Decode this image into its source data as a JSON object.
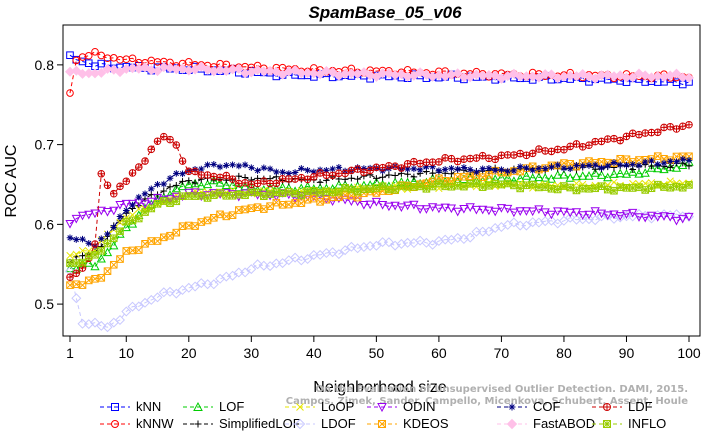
{
  "chart_data": {
    "type": "line",
    "title": "SpamBase_05_v06",
    "xlabel": "Neighborhood size",
    "ylabel": "ROC AUC",
    "xlim": [
      1,
      100
    ],
    "ylim": [
      0.46,
      0.85
    ],
    "x_ticks": [
      1,
      10,
      20,
      30,
      40,
      50,
      60,
      70,
      80,
      90,
      100
    ],
    "y_ticks": [
      0.5,
      0.6,
      0.7,
      0.8
    ],
    "grid": false,
    "legend_position": "bottom",
    "watermark": [
      "On the Evaluation of Unsupervised Outlier Detection. DAMI, 2015.",
      "Campos, Zimek, Sander, Campello, Micenkova, Schubert, Assent, Houle"
    ],
    "series": [
      {
        "name": "kNN",
        "color": "#0000ff",
        "marker": "square",
        "dashed": true,
        "points": [
          [
            1,
            0.809
          ],
          [
            3,
            0.805
          ],
          [
            5,
            0.8
          ],
          [
            10,
            0.797
          ],
          [
            15,
            0.796
          ],
          [
            20,
            0.795
          ],
          [
            25,
            0.793
          ],
          [
            30,
            0.791
          ],
          [
            35,
            0.788
          ],
          [
            40,
            0.787
          ],
          [
            50,
            0.786
          ],
          [
            60,
            0.785
          ],
          [
            70,
            0.784
          ],
          [
            80,
            0.783
          ],
          [
            90,
            0.781
          ],
          [
            100,
            0.778
          ]
        ]
      },
      {
        "name": "kNNW",
        "color": "#ff0000",
        "marker": "circle",
        "dashed": true,
        "points": [
          [
            1,
            0.765
          ],
          [
            2,
            0.805
          ],
          [
            3,
            0.812
          ],
          [
            5,
            0.813
          ],
          [
            10,
            0.806
          ],
          [
            20,
            0.801
          ],
          [
            30,
            0.797
          ],
          [
            40,
            0.793
          ],
          [
            50,
            0.792
          ],
          [
            60,
            0.79
          ],
          [
            70,
            0.788
          ],
          [
            80,
            0.787
          ],
          [
            90,
            0.786
          ],
          [
            100,
            0.785
          ]
        ]
      },
      {
        "name": "LOF",
        "color": "#00cc00",
        "marker": "triangle-up",
        "dashed": true,
        "points": [
          [
            1,
            0.545
          ],
          [
            3,
            0.55
          ],
          [
            5,
            0.548
          ],
          [
            8,
            0.575
          ],
          [
            10,
            0.595
          ],
          [
            13,
            0.62
          ],
          [
            17,
            0.64
          ],
          [
            20,
            0.65
          ],
          [
            25,
            0.652
          ],
          [
            30,
            0.645
          ],
          [
            40,
            0.645
          ],
          [
            50,
            0.65
          ],
          [
            60,
            0.655
          ],
          [
            70,
            0.657
          ],
          [
            80,
            0.66
          ],
          [
            90,
            0.663
          ],
          [
            100,
            0.675
          ]
        ]
      },
      {
        "name": "SimplifiedLOF",
        "color": "#000000",
        "marker": "plus",
        "dashed": true,
        "points": [
          [
            1,
            0.555
          ],
          [
            3,
            0.56
          ],
          [
            5,
            0.565
          ],
          [
            10,
            0.615
          ],
          [
            15,
            0.64
          ],
          [
            20,
            0.655
          ],
          [
            30,
            0.658
          ],
          [
            40,
            0.655
          ],
          [
            50,
            0.66
          ],
          [
            60,
            0.665
          ],
          [
            70,
            0.668
          ],
          [
            80,
            0.67
          ],
          [
            90,
            0.672
          ],
          [
            100,
            0.675
          ]
        ]
      },
      {
        "name": "LoOP",
        "color": "#e6e600",
        "marker": "x",
        "dashed": true,
        "points": [
          [
            1,
            0.56
          ],
          [
            5,
            0.57
          ],
          [
            10,
            0.61
          ],
          [
            15,
            0.625
          ],
          [
            20,
            0.64
          ],
          [
            30,
            0.64
          ],
          [
            40,
            0.64
          ],
          [
            50,
            0.645
          ],
          [
            60,
            0.648
          ],
          [
            70,
            0.65
          ],
          [
            80,
            0.648
          ],
          [
            90,
            0.65
          ],
          [
            100,
            0.652
          ]
        ]
      },
      {
        "name": "LDOF",
        "color": "#c8c8ff",
        "marker": "diamond",
        "dashed": true,
        "points": [
          [
            1,
            0.54
          ],
          [
            2,
            0.505
          ],
          [
            3,
            0.478
          ],
          [
            5,
            0.475
          ],
          [
            7,
            0.47
          ],
          [
            10,
            0.49
          ],
          [
            15,
            0.51
          ],
          [
            20,
            0.52
          ],
          [
            25,
            0.53
          ],
          [
            30,
            0.545
          ],
          [
            40,
            0.56
          ],
          [
            50,
            0.575
          ],
          [
            60,
            0.578
          ],
          [
            65,
            0.585
          ],
          [
            70,
            0.598
          ],
          [
            80,
            0.605
          ],
          [
            90,
            0.61
          ],
          [
            100,
            0.612
          ]
        ]
      },
      {
        "name": "ODIN",
        "color": "#9900ee",
        "marker": "triangle-down",
        "dashed": true,
        "points": [
          [
            1,
            0.6
          ],
          [
            2,
            0.61
          ],
          [
            4,
            0.612
          ],
          [
            6,
            0.615
          ],
          [
            8,
            0.62
          ],
          [
            10,
            0.625
          ],
          [
            15,
            0.63
          ],
          [
            20,
            0.638
          ],
          [
            30,
            0.638
          ],
          [
            40,
            0.635
          ],
          [
            50,
            0.625
          ],
          [
            60,
            0.62
          ],
          [
            70,
            0.618
          ],
          [
            80,
            0.615
          ],
          [
            90,
            0.612
          ],
          [
            100,
            0.607
          ]
        ]
      },
      {
        "name": "KDEOS",
        "color": "#ffa500",
        "marker": "square-x",
        "dashed": true,
        "points": [
          [
            1,
            0.525
          ],
          [
            3,
            0.525
          ],
          [
            5,
            0.53
          ],
          [
            8,
            0.548
          ],
          [
            10,
            0.565
          ],
          [
            15,
            0.58
          ],
          [
            20,
            0.598
          ],
          [
            25,
            0.61
          ],
          [
            30,
            0.62
          ],
          [
            35,
            0.625
          ],
          [
            40,
            0.63
          ],
          [
            50,
            0.64
          ],
          [
            60,
            0.655
          ],
          [
            70,
            0.665
          ],
          [
            80,
            0.675
          ],
          [
            90,
            0.68
          ],
          [
            100,
            0.685
          ]
        ]
      },
      {
        "name": "COF",
        "color": "#000080",
        "marker": "asterisk",
        "dashed": true,
        "points": [
          [
            1,
            0.585
          ],
          [
            3,
            0.578
          ],
          [
            5,
            0.575
          ],
          [
            8,
            0.595
          ],
          [
            10,
            0.62
          ],
          [
            15,
            0.65
          ],
          [
            20,
            0.668
          ],
          [
            25,
            0.675
          ],
          [
            30,
            0.672
          ],
          [
            35,
            0.665
          ],
          [
            40,
            0.668
          ],
          [
            50,
            0.67
          ],
          [
            60,
            0.67
          ],
          [
            70,
            0.668
          ],
          [
            80,
            0.672
          ],
          [
            90,
            0.675
          ],
          [
            100,
            0.68
          ]
        ]
      },
      {
        "name": "FastABOD",
        "color": "#ffc0e8",
        "marker": "diamond-filled",
        "dashed": true,
        "points": [
          [
            1,
            0.79
          ],
          [
            5,
            0.79
          ],
          [
            10,
            0.795
          ],
          [
            20,
            0.795
          ],
          [
            30,
            0.792
          ],
          [
            40,
            0.79
          ],
          [
            50,
            0.788
          ],
          [
            60,
            0.787
          ],
          [
            70,
            0.786
          ],
          [
            80,
            0.786
          ],
          [
            90,
            0.786
          ],
          [
            100,
            0.786
          ]
        ]
      },
      {
        "name": "LDF",
        "color": "#cc0000",
        "marker": "circle-plus",
        "dashed": true,
        "points": [
          [
            1,
            0.533
          ],
          [
            3,
            0.545
          ],
          [
            5,
            0.575
          ],
          [
            6,
            0.66
          ],
          [
            8,
            0.64
          ],
          [
            10,
            0.655
          ],
          [
            12,
            0.67
          ],
          [
            14,
            0.695
          ],
          [
            16,
            0.71
          ],
          [
            18,
            0.7
          ],
          [
            20,
            0.665
          ],
          [
            25,
            0.66
          ],
          [
            30,
            0.65
          ],
          [
            40,
            0.66
          ],
          [
            50,
            0.67
          ],
          [
            60,
            0.68
          ],
          [
            70,
            0.685
          ],
          [
            80,
            0.695
          ],
          [
            90,
            0.71
          ],
          [
            100,
            0.725
          ]
        ]
      },
      {
        "name": "INFLO",
        "color": "#99cc00",
        "marker": "square-star",
        "dashed": true,
        "points": [
          [
            1,
            0.55
          ],
          [
            5,
            0.56
          ],
          [
            10,
            0.6
          ],
          [
            15,
            0.625
          ],
          [
            20,
            0.635
          ],
          [
            30,
            0.638
          ],
          [
            40,
            0.64
          ],
          [
            50,
            0.645
          ],
          [
            60,
            0.648
          ],
          [
            70,
            0.65
          ],
          [
            80,
            0.645
          ],
          [
            90,
            0.645
          ],
          [
            100,
            0.648
          ]
        ]
      }
    ]
  }
}
